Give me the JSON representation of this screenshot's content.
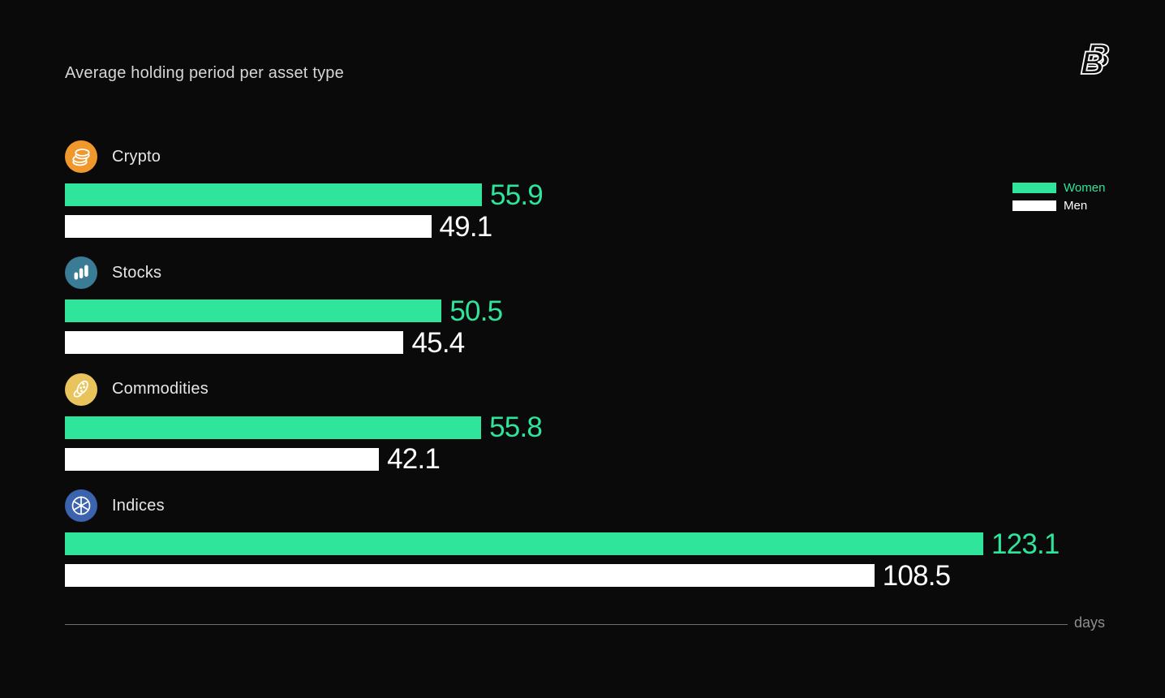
{
  "title": "Average holding period per asset type",
  "logo": {
    "letter": "B"
  },
  "colors": {
    "background": "#0a0a0a",
    "women": "#2ee59b",
    "men": "#ffffff",
    "title_text": "#d6d6d6",
    "label_text": "#e6e6e6",
    "axis_line": "#6e6e6e",
    "axis_text": "#8f8f8f"
  },
  "legend": {
    "items": [
      {
        "label": "Women",
        "color": "#2ee59b"
      },
      {
        "label": "Men",
        "color": "#ffffff"
      }
    ]
  },
  "axis": {
    "label": "days"
  },
  "icons": [
    {
      "name": "coins-icon",
      "color": "#f0982b"
    },
    {
      "name": "bar-chart-icon",
      "color": "#3a7b96"
    },
    {
      "name": "corn-icon",
      "color": "#e9c45c"
    },
    {
      "name": "pie-chart-icon",
      "color": "#3b63ae"
    }
  ],
  "chart_data": {
    "type": "bar",
    "orientation": "horizontal",
    "title": "Average holding period per asset type",
    "categories": [
      "Crypto",
      "Stocks",
      "Commodities",
      "Indices"
    ],
    "series": [
      {
        "name": "Women",
        "color": "#2ee59b",
        "values": [
          55.9,
          50.5,
          55.8,
          123.1
        ]
      },
      {
        "name": "Men",
        "color": "#ffffff",
        "values": [
          49.1,
          45.4,
          42.1,
          108.5
        ]
      }
    ],
    "xlabel": "days",
    "xlim": [
      0,
      123.1
    ],
    "grid": false,
    "legend_position": "top-right",
    "value_labels": true
  }
}
